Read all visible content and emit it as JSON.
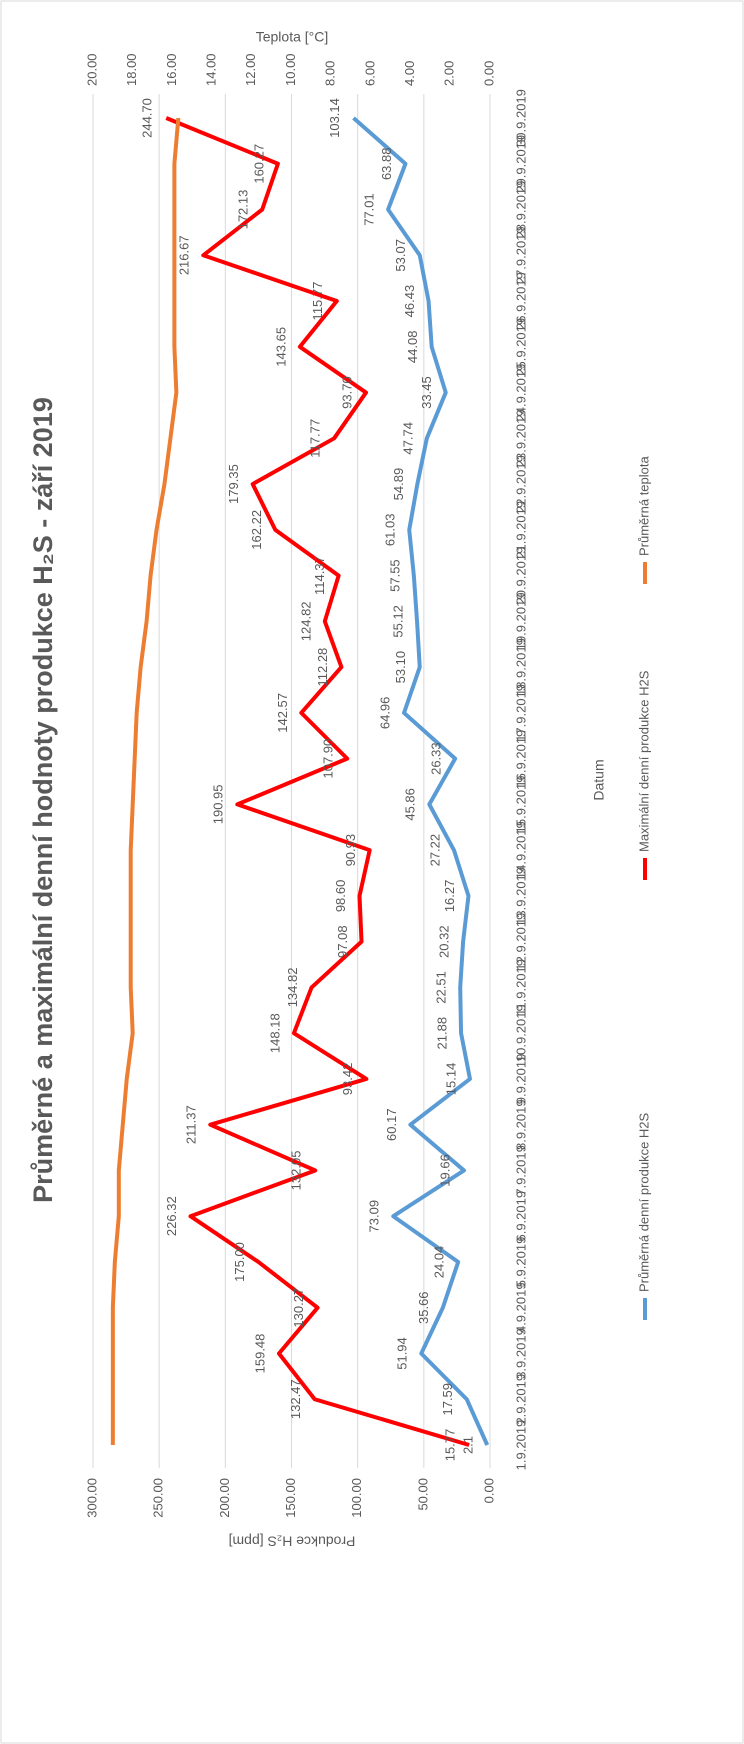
{
  "chart_data": {
    "type": "line",
    "title": "Průměrné a maximální denní hodnoty produkce H₂S - září 2019",
    "x_label": "Datum",
    "y_label": "Produkce H₂S [ppm]",
    "y2_label": "Teplota [°C]",
    "categories": [
      "1.9.2019",
      "2.9.2019",
      "3.9.2019",
      "4.9.2019",
      "5.9.2019",
      "6.9.2019",
      "7.9.2019",
      "8.9.2019",
      "9.9.2019",
      "10.9.2019",
      "11.9.2019",
      "12.9.2019",
      "13.9.2019",
      "14.9.2019",
      "15.9.2019",
      "16.9.2019",
      "17.9.2019",
      "18.9.2019",
      "19.9.2019",
      "20.9.2019",
      "21.9.2019",
      "22.9.2019",
      "23.9.2019",
      "24.9.2019",
      "25.9.2019",
      "26.9.2019",
      "27.9.2019",
      "28.9.2019",
      "29.9.2019",
      "30.9.2019"
    ],
    "series": [
      {
        "name": "Průměrná denní produkce H2S",
        "color": "#5b9bd5",
        "values": [
          2.1,
          17.59,
          51.94,
          35.66,
          24.04,
          73.09,
          19.66,
          60.17,
          15.14,
          21.88,
          22.51,
          20.32,
          16.27,
          27.22,
          45.86,
          26.33,
          64.96,
          53.1,
          55.12,
          57.55,
          61.03,
          54.89,
          47.74,
          33.45,
          44.08,
          46.43,
          53.07,
          77.01,
          63.88,
          103.14
        ],
        "value_labels": [
          "2.1",
          "17.59",
          "51.94",
          "35.66",
          "24.04",
          "73.09",
          "19.66",
          "60.17",
          "15.14",
          "21.88",
          "22.51",
          "20.32",
          "16.27",
          "27.22",
          "45.86",
          "26.33",
          "64.96",
          "53.10",
          "55.12",
          "57.55",
          "61.03",
          "54.89",
          "47.74",
          "33.45",
          "44.08",
          "46.43",
          "53.07",
          "77.01",
          "63.88",
          "103.14"
        ]
      },
      {
        "name": "Maximální denní produkce H2S",
        "color": "#ff0000",
        "values": [
          15.77,
          132.47,
          159.48,
          130.27,
          175.0,
          226.32,
          132.05,
          211.37,
          93.42,
          148.18,
          134.82,
          97.08,
          98.6,
          90.93,
          190.95,
          107.9,
          142.57,
          112.28,
          124.82,
          114.37,
          162.22,
          179.35,
          117.77,
          93.7,
          143.65,
          115.77,
          216.67,
          172.13,
          160.27,
          244.7
        ],
        "value_labels": [
          "15.77",
          "132.47",
          "159.48",
          "130.27",
          "175.00",
          "226.32",
          "132.05",
          "211.37",
          "93.42",
          "148.18",
          "134.82",
          "97.08",
          "98.60",
          "90.93",
          "190.95",
          "107.90",
          "142.57",
          "112.28",
          "124.82",
          "114.37",
          "162.22",
          "179.35",
          "117.77",
          "93.70",
          "143.65",
          "115.77",
          "216.67",
          "172.13",
          "160.27",
          "244.70"
        ]
      },
      {
        "name": "Průměrná teplota",
        "color": "#ed7d31",
        "axis": "y2",
        "values": [
          19.0,
          19.0,
          19.0,
          19.0,
          18.9,
          18.7,
          18.7,
          18.5,
          18.3,
          18.0,
          18.1,
          18.1,
          18.1,
          18.1,
          18.0,
          17.9,
          17.8,
          17.6,
          17.3,
          17.1,
          16.8,
          16.4,
          16.1,
          15.8,
          15.9,
          15.9,
          15.9,
          15.9,
          15.9,
          15.7
        ]
      }
    ],
    "ylim": [
      0,
      300
    ],
    "yticks": [
      {
        "value": 0,
        "label": "0.00"
      },
      {
        "value": 50,
        "label": "50.00"
      },
      {
        "value": 100,
        "label": "100.00"
      },
      {
        "value": 150,
        "label": "150.00"
      },
      {
        "value": 200,
        "label": "200.00"
      },
      {
        "value": 250,
        "label": "250.00"
      },
      {
        "value": 300,
        "label": "300.00"
      }
    ],
    "y2lim": [
      0,
      20
    ],
    "y2ticks": [
      {
        "value": 0,
        "label": "0.00"
      },
      {
        "value": 2,
        "label": "2.00"
      },
      {
        "value": 4,
        "label": "4.00"
      },
      {
        "value": 6,
        "label": "6.00"
      },
      {
        "value": 8,
        "label": "8.00"
      },
      {
        "value": 10,
        "label": "10.00"
      },
      {
        "value": 12,
        "label": "12.00"
      },
      {
        "value": 14,
        "label": "14.00"
      },
      {
        "value": 16,
        "label": "16.00"
      },
      {
        "value": 18,
        "label": "18.00"
      },
      {
        "value": 20,
        "label": "20.00"
      }
    ],
    "grid": true,
    "legend": "bottom"
  }
}
